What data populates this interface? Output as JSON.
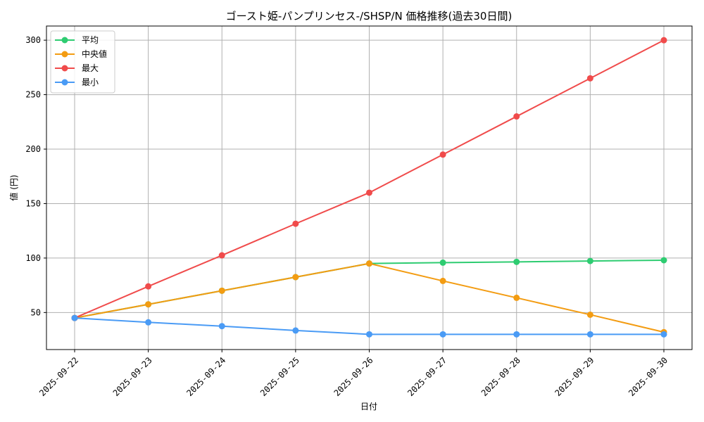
{
  "chart_data": {
    "type": "line",
    "title": "ゴースト姫-パンプリンセス-/SHSP/N 価格推移(過去30日間)",
    "xlabel": "日付",
    "ylabel": "値 (円)",
    "ylim": [
      16,
      313
    ],
    "yticks": [
      50,
      100,
      150,
      200,
      250,
      300
    ],
    "grid": true,
    "legend_position": "top-left",
    "categories": [
      "2025-09-22",
      "2025-09-23",
      "2025-09-24",
      "2025-09-25",
      "2025-09-26",
      "2025-09-27",
      "2025-09-28",
      "2025-09-29",
      "2025-09-30"
    ],
    "series": [
      {
        "name": "平均",
        "color": "#2ecc71",
        "values": [
          45,
          57.5,
          70,
          82.5,
          95,
          95.8,
          96.5,
          97.3,
          98
        ]
      },
      {
        "name": "中央値",
        "color": "#f39c12",
        "values": [
          45,
          57.5,
          70,
          82.5,
          95,
          79,
          63.5,
          48,
          32
        ]
      },
      {
        "name": "最大",
        "color": "#f04b4b",
        "values": [
          45,
          74,
          102.5,
          131.5,
          160,
          195,
          230,
          265,
          300
        ]
      },
      {
        "name": "最小",
        "color": "#4a9bf5",
        "values": [
          45,
          41,
          37.5,
          33.5,
          30,
          30,
          30,
          30,
          30
        ]
      }
    ]
  }
}
